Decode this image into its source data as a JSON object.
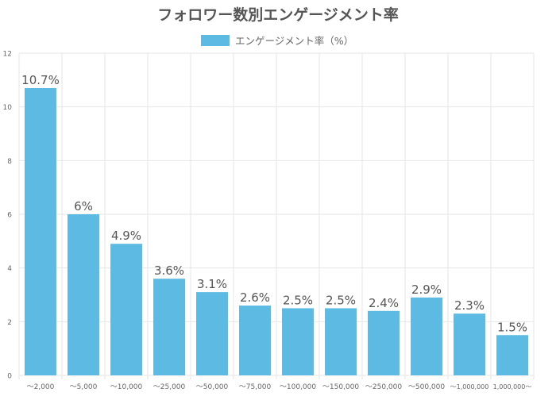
{
  "chart_data": {
    "type": "bar",
    "title": "フォロワー数別エンゲージメント率",
    "legend": {
      "label": "エンゲージメント率（%）",
      "placement": "top-center",
      "color": "#5dbae3"
    },
    "categories": [
      "〜2,000",
      "〜5,000",
      "〜10,000",
      "〜25,000",
      "〜50,000",
      "〜75,000",
      "〜100,000",
      "〜150,000",
      "〜250,000",
      "〜500,000",
      "〜1,000,000",
      "1,000,000〜"
    ],
    "series": [
      {
        "name": "エンゲージメント率（%）",
        "values": [
          10.7,
          6,
          4.9,
          3.6,
          3.1,
          2.6,
          2.5,
          2.5,
          2.4,
          2.9,
          2.3,
          1.5
        ]
      }
    ],
    "data_labels": [
      "10.7%",
      "6%",
      "4.9%",
      "3.6%",
      "3.1%",
      "2.6%",
      "2.5%",
      "2.5%",
      "2.4%",
      "2.9%",
      "2.3%",
      "1.5%"
    ],
    "ylim": [
      0,
      12
    ],
    "yticks": [
      0,
      2,
      4,
      6,
      8,
      10,
      12
    ],
    "grid": true,
    "colors": {
      "bar": "#5dbae3",
      "grid": "#e6e6e6",
      "axis_text": "#666666",
      "label_text": "#555555",
      "title_text": "#555555"
    }
  }
}
